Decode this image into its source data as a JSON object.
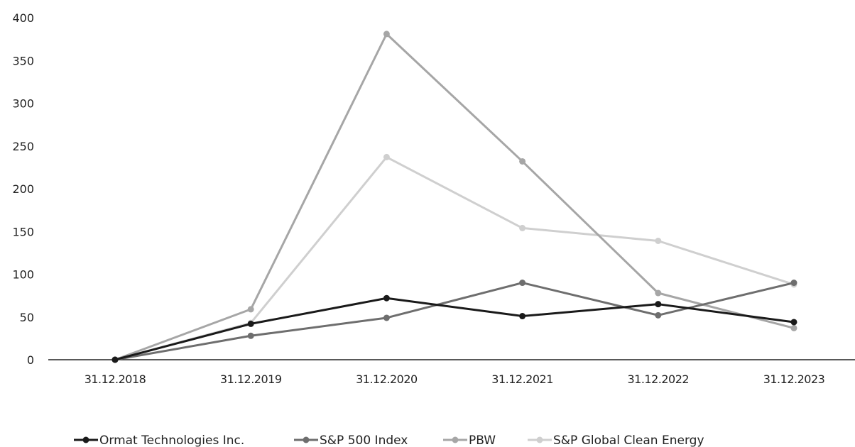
{
  "chart_data": {
    "type": "line",
    "categories": [
      "31.12.2018",
      "31.12.2019",
      "31.12.2020",
      "31.12.2021",
      "31.12.2022",
      "31.12.2023"
    ],
    "ylim": [
      0,
      400
    ],
    "yticks": [
      "0",
      "50",
      "100",
      "150",
      "200",
      "250",
      "300",
      "350",
      "400"
    ],
    "grid": false,
    "legend_position": "bottom",
    "series": [
      {
        "name": "Ormat Technologies Inc.",
        "color": "#1a1a1a",
        "values": [
          0,
          42,
          72,
          51,
          65,
          44
        ]
      },
      {
        "name": "S&P 500 Index",
        "color": "#6e6e6e",
        "values": [
          0,
          28,
          49,
          90,
          52,
          90
        ]
      },
      {
        "name": "PBW",
        "color": "#a6a6a6",
        "values": [
          0,
          59,
          381,
          232,
          78,
          37
        ]
      },
      {
        "name": "S&P Global Clean Energy",
        "color": "#cfcfcf",
        "values": [
          0,
          43,
          237,
          154,
          139,
          88
        ]
      }
    ]
  }
}
